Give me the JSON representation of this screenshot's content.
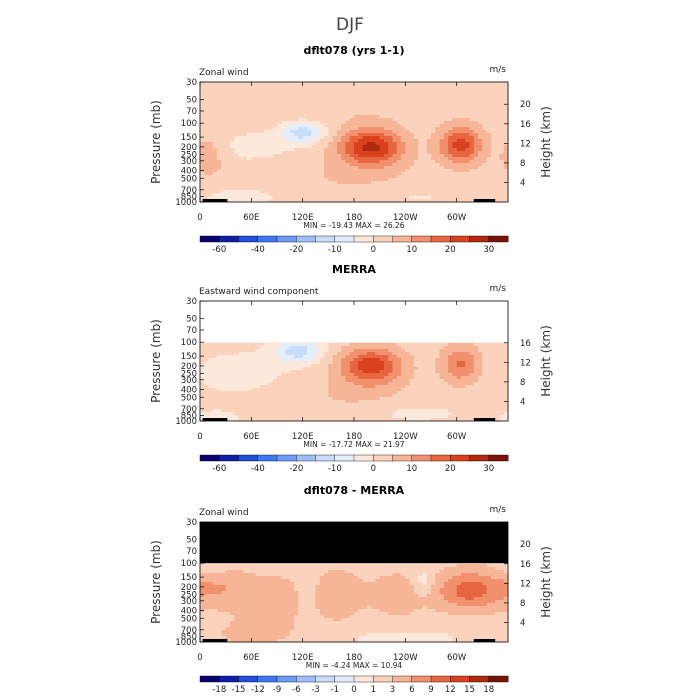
{
  "figure": {
    "title": "DJF"
  },
  "chart_data": [
    {
      "type": "heatmap",
      "panel_title": "dflt078 (yrs 1-1)",
      "field_label": "Zonal wind",
      "units": "m/s",
      "ylabel_left": "Pressure (mb)",
      "ylabel_right": "Height (km)",
      "stats": "MIN = -19.43   MAX =  26.26",
      "x_ticks": [
        "0",
        "60E",
        "120E",
        "180",
        "120W",
        "60W"
      ],
      "y_ticks": [
        "30",
        "50",
        "70",
        "100",
        "150",
        "200",
        "250",
        "300",
        "400",
        "500",
        "700",
        "850",
        "1000"
      ],
      "height_ticks": [
        "20",
        "16",
        "12",
        "8",
        "4"
      ],
      "colorbar_labels": [
        "-60",
        "-40",
        "-20",
        "-10",
        "0",
        "10",
        "20",
        "30"
      ],
      "masked_top": false,
      "blobs": [
        {
          "lon": 120,
          "p": 130,
          "v": -15,
          "sx": 18,
          "sy": 0.22
        },
        {
          "lon": 60,
          "p": 200,
          "v": -4,
          "sx": 40,
          "sy": 0.35
        },
        {
          "lon": 200,
          "p": 200,
          "v": 24,
          "sx": 26,
          "sy": 0.38
        },
        {
          "lon": 305,
          "p": 190,
          "v": 20,
          "sx": 18,
          "sy": 0.38
        },
        {
          "lon": 10,
          "p": 250,
          "v": 6,
          "sx": 16,
          "sy": 0.5
        },
        {
          "lon": 170,
          "p": 500,
          "v": 3,
          "sx": 70,
          "sy": 0.5
        },
        {
          "lon": 50,
          "p": 850,
          "v": -4,
          "sx": 40,
          "sy": 0.2
        },
        {
          "lon": 250,
          "p": 850,
          "v": -3,
          "sx": 40,
          "sy": 0.2
        },
        {
          "lon": 150,
          "p": 50,
          "v": 3,
          "sx": 120,
          "sy": 0.5
        }
      ]
    },
    {
      "type": "heatmap",
      "panel_title": "MERRA",
      "field_label": "Eastward wind component",
      "units": "m/s",
      "ylabel_left": "Pressure (mb)",
      "ylabel_right": "Height (km)",
      "stats": "MIN = -17.72   MAX =  21.97",
      "x_ticks": [
        "0",
        "60E",
        "120E",
        "180",
        "120W",
        "60W"
      ],
      "y_ticks": [
        "30",
        "50",
        "70",
        "100",
        "150",
        "200",
        "250",
        "300",
        "400",
        "500",
        "700",
        "850",
        "1000"
      ],
      "height_ticks": [
        "16",
        "12",
        "8",
        "4"
      ],
      "colorbar_labels": [
        "-60",
        "-40",
        "-20",
        "-10",
        "0",
        "10",
        "20",
        "30"
      ],
      "masked_top": false,
      "data_top_p": 100,
      "blobs": [
        {
          "lon": 115,
          "p": 130,
          "v": -14,
          "sx": 20,
          "sy": 0.25
        },
        {
          "lon": 50,
          "p": 250,
          "v": -4,
          "sx": 45,
          "sy": 0.5
        },
        {
          "lon": 200,
          "p": 200,
          "v": 21,
          "sx": 26,
          "sy": 0.38
        },
        {
          "lon": 305,
          "p": 190,
          "v": 14,
          "sx": 16,
          "sy": 0.38
        },
        {
          "lon": 170,
          "p": 500,
          "v": 3,
          "sx": 60,
          "sy": 0.5
        },
        {
          "lon": 250,
          "p": 800,
          "v": -4,
          "sx": 40,
          "sy": 0.2
        },
        {
          "lon": 20,
          "p": 900,
          "v": -3,
          "sx": 30,
          "sy": 0.2
        }
      ]
    },
    {
      "type": "heatmap",
      "panel_title": "dflt078 - MERRA",
      "field_label": "Zonal wind",
      "units": "m/s",
      "ylabel_left": "Pressure (mb)",
      "ylabel_right": "Height (km)",
      "stats": "MIN = -4.24   MAX =  10.94",
      "x_ticks": [
        "0",
        "60E",
        "120E",
        "180",
        "120W",
        "60W"
      ],
      "y_ticks": [
        "30",
        "50",
        "70",
        "100",
        "150",
        "200",
        "250",
        "300",
        "400",
        "500",
        "700",
        "850",
        "1000"
      ],
      "height_ticks": [
        "20",
        "16",
        "12",
        "8",
        "4"
      ],
      "colorbar_labels": [
        "-18",
        "-15",
        "-12",
        "-9",
        "-6",
        "-3",
        "-1",
        "0",
        "1",
        "3",
        "6",
        "9",
        "12",
        "15",
        "18"
      ],
      "masked_top": true,
      "data_top_p": 100,
      "blobs": [
        {
          "lon": 20,
          "p": 200,
          "v": 4,
          "sx": 25,
          "sy": 0.4
        },
        {
          "lon": 85,
          "p": 300,
          "v": 4,
          "sx": 30,
          "sy": 0.5
        },
        {
          "lon": 125,
          "p": 250,
          "v": -2,
          "sx": 10,
          "sy": 0.6
        },
        {
          "lon": 160,
          "p": 250,
          "v": 4,
          "sx": 20,
          "sy": 0.5
        },
        {
          "lon": 230,
          "p": 250,
          "v": 3,
          "sx": 25,
          "sy": 0.5
        },
        {
          "lon": 262,
          "p": 180,
          "v": -3,
          "sx": 10,
          "sy": 0.3
        },
        {
          "lon": 315,
          "p": 220,
          "v": 9,
          "sx": 28,
          "sy": 0.4
        },
        {
          "lon": 240,
          "p": 900,
          "v": -1.5,
          "sx": 40,
          "sy": 0.15
        },
        {
          "lon": 60,
          "p": 800,
          "v": 2,
          "sx": 40,
          "sy": 0.3
        },
        {
          "lon": 10,
          "p": 120,
          "v": -2,
          "sx": 15,
          "sy": 0.2
        }
      ]
    }
  ],
  "colors": {
    "colorbar": [
      "#08006e",
      "#0d1fa8",
      "#1f4fd8",
      "#3c78f0",
      "#6c9cf5",
      "#9dbef9",
      "#c8dcfb",
      "#e4eefc",
      "#fde9dc",
      "#fbd2bc",
      "#f7b597",
      "#f0906d",
      "#e8663f",
      "#d9401e",
      "#b02a0e",
      "#7a1505"
    ]
  }
}
